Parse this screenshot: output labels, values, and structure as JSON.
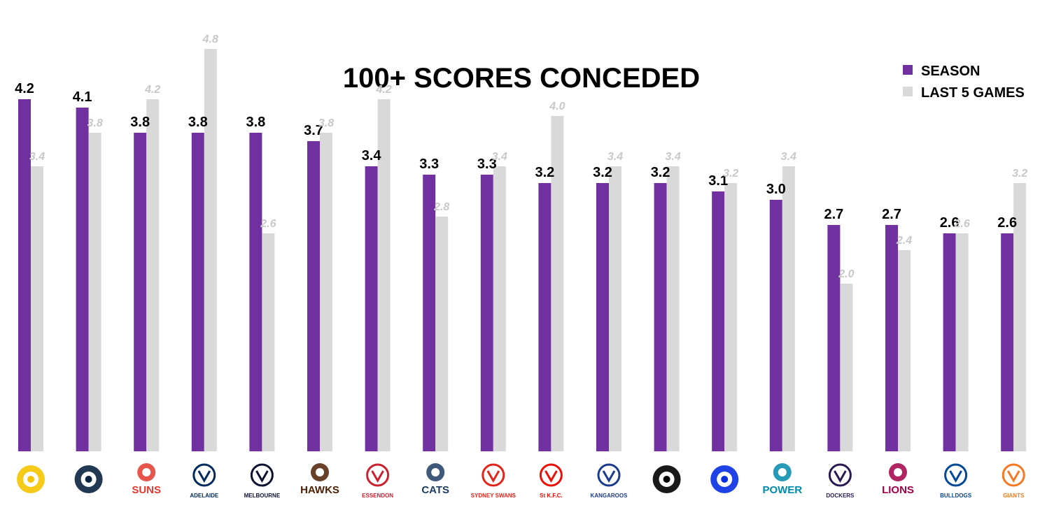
{
  "chart_data": {
    "type": "bar",
    "title": "100+ SCORES CONCEDED",
    "legend_position": "top-right",
    "grid": false,
    "ylim": [
      0,
      4.8
    ],
    "colors": {
      "season": "#7030a0",
      "last5": "#d9d9d9",
      "last5_label": "#c8c8c8"
    },
    "categories": [
      "RICH",
      "CARL",
      "GCFC",
      "ADEL",
      "MELB",
      "HAW",
      "ESS",
      "GEEL",
      "SYD",
      "STK",
      "NMFC",
      "COLL",
      "WCE",
      "PORT",
      "FREM",
      "BRIS",
      "WB",
      "GWS"
    ],
    "series": [
      {
        "name": "SEASON",
        "values": [
          4.2,
          4.1,
          3.8,
          3.8,
          3.8,
          3.7,
          3.4,
          3.3,
          3.3,
          3.2,
          3.2,
          3.2,
          3.1,
          3.0,
          2.7,
          2.7,
          2.6,
          2.6
        ]
      },
      {
        "name": "LAST 5 GAMES",
        "values": [
          3.4,
          3.8,
          4.2,
          4.8,
          2.6,
          3.8,
          4.2,
          2.8,
          3.4,
          4.0,
          3.4,
          3.4,
          3.2,
          3.4,
          2.0,
          2.4,
          2.6,
          3.2
        ]
      }
    ],
    "team_logos": [
      {
        "icon": "richmond-tiger-icon",
        "text": "",
        "color": "#f5c400"
      },
      {
        "icon": "carlton-monogram-icon",
        "text": "",
        "color": "#0b2240"
      },
      {
        "icon": "gold-coast-suns-icon",
        "text": "SUNS",
        "color": "#e2382e"
      },
      {
        "icon": "adelaide-crow-icon",
        "text": "ADELAIDE",
        "color": "#002b5c"
      },
      {
        "icon": "melbourne-shield-icon",
        "text": "MELBOURNE",
        "color": "#0f1131"
      },
      {
        "icon": "hawthorn-hawk-icon",
        "text": "HAWKS",
        "color": "#4d2004"
      },
      {
        "icon": "essendon-shield-icon",
        "text": "ESSENDON",
        "color": "#cc2031"
      },
      {
        "icon": "geelong-cat-icon",
        "text": "CATS",
        "color": "#1c3c63"
      },
      {
        "icon": "sydney-swan-icon",
        "text": "SYDNEY SWANS",
        "color": "#e1251b"
      },
      {
        "icon": "st-kilda-cross-icon",
        "text": "St K.F.C.",
        "color": "#ed0f05"
      },
      {
        "icon": "kangaroo-icon",
        "text": "KANGAROOS",
        "color": "#1a3b8e"
      },
      {
        "icon": "collingwood-magpie-icon",
        "text": "",
        "color": "#000000"
      },
      {
        "icon": "west-coast-eagle-icon",
        "text": "",
        "color": "#062ee2"
      },
      {
        "icon": "port-power-icon",
        "text": "POWER",
        "color": "#008aab"
      },
      {
        "icon": "fremantle-anchor-icon",
        "text": "DOCKERS",
        "color": "#2a1a54"
      },
      {
        "icon": "brisbane-lion-icon",
        "text": "LIONS",
        "color": "#a30046"
      },
      {
        "icon": "western-bulldog-icon",
        "text": "BULLDOGS",
        "color": "#014896"
      },
      {
        "icon": "gws-giants-icon",
        "text": "GIANTS",
        "color": "#f47920"
      }
    ]
  }
}
